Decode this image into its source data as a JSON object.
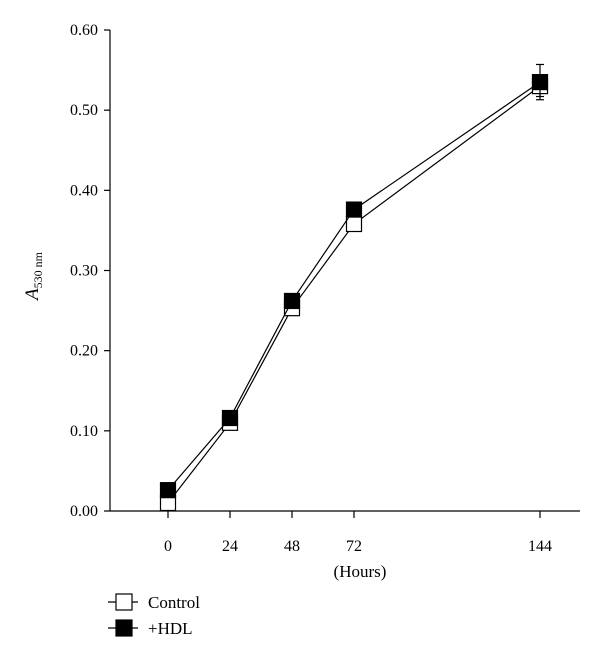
{
  "chart_data": {
    "type": "line",
    "title": "",
    "xlabel": "(Hours)",
    "ylabel": "A",
    "ylabel_subscript": "530 nm",
    "x": [
      0,
      24,
      48,
      72,
      144
    ],
    "x_tick_labels": [
      "0",
      "24",
      "48",
      "72",
      "144"
    ],
    "y_tick_labels": [
      "0.00",
      "0.10",
      "0.20",
      "0.30",
      "0.40",
      "0.50",
      "0.60"
    ],
    "xlim": [
      -24,
      160
    ],
    "ylim": [
      0,
      0.6
    ],
    "grid": false,
    "legend_position": "bottom-left",
    "series": [
      {
        "name": "Control",
        "marker": "open-square",
        "color": "#000000",
        "values": [
          0.01,
          0.11,
          0.253,
          0.358,
          0.53
        ],
        "errors": [
          0.005,
          0.005,
          0.006,
          0.006,
          0.013
        ]
      },
      {
        "name": "+HDL",
        "marker": "filled-square",
        "color": "#000000",
        "values": [
          0.026,
          0.116,
          0.262,
          0.376,
          0.535
        ],
        "errors": [
          0.004,
          0.005,
          0.006,
          0.006,
          0.022
        ]
      }
    ]
  }
}
